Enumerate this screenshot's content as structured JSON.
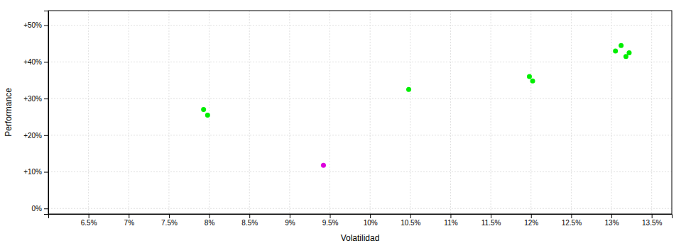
{
  "chart_data": {
    "type": "scatter",
    "xlabel": "Volatilidad",
    "ylabel": "Performance",
    "xlim": [
      0.06,
      0.1375
    ],
    "ylim": [
      -0.015,
      0.54
    ],
    "xticks": [
      {
        "value": 0.065,
        "label": "6.5%"
      },
      {
        "value": 0.07,
        "label": "7%"
      },
      {
        "value": 0.075,
        "label": "7.5%"
      },
      {
        "value": 0.08,
        "label": "8%"
      },
      {
        "value": 0.085,
        "label": "8.5%"
      },
      {
        "value": 0.09,
        "label": "9%"
      },
      {
        "value": 0.095,
        "label": "9.5%"
      },
      {
        "value": 0.1,
        "label": "10%"
      },
      {
        "value": 0.105,
        "label": "10.5%"
      },
      {
        "value": 0.11,
        "label": "11%"
      },
      {
        "value": 0.115,
        "label": "11.5%"
      },
      {
        "value": 0.12,
        "label": "12%"
      },
      {
        "value": 0.125,
        "label": "12.5%"
      },
      {
        "value": 0.13,
        "label": "13%"
      },
      {
        "value": 0.135,
        "label": "13.5%"
      }
    ],
    "yticks": [
      {
        "value": 0.0,
        "label": "0%"
      },
      {
        "value": 0.1,
        "label": "+10%"
      },
      {
        "value": 0.2,
        "label": "+20%"
      },
      {
        "value": 0.3,
        "label": "+30%"
      },
      {
        "value": 0.4,
        "label": "+40%"
      },
      {
        "value": 0.5,
        "label": "+50%"
      }
    ],
    "grid": true,
    "series": [
      {
        "color": "#00ee00",
        "x": [
          0.0793,
          0.0798,
          0.1048,
          0.1198,
          0.1202,
          0.1305,
          0.1312,
          0.1318,
          0.1322
        ],
        "values": [
          0.27,
          0.255,
          0.325,
          0.36,
          0.348,
          0.43,
          0.445,
          0.415,
          0.425
        ]
      },
      {
        "color": "#dd00dd",
        "x": [
          0.0942
        ],
        "values": [
          0.118
        ]
      }
    ]
  }
}
